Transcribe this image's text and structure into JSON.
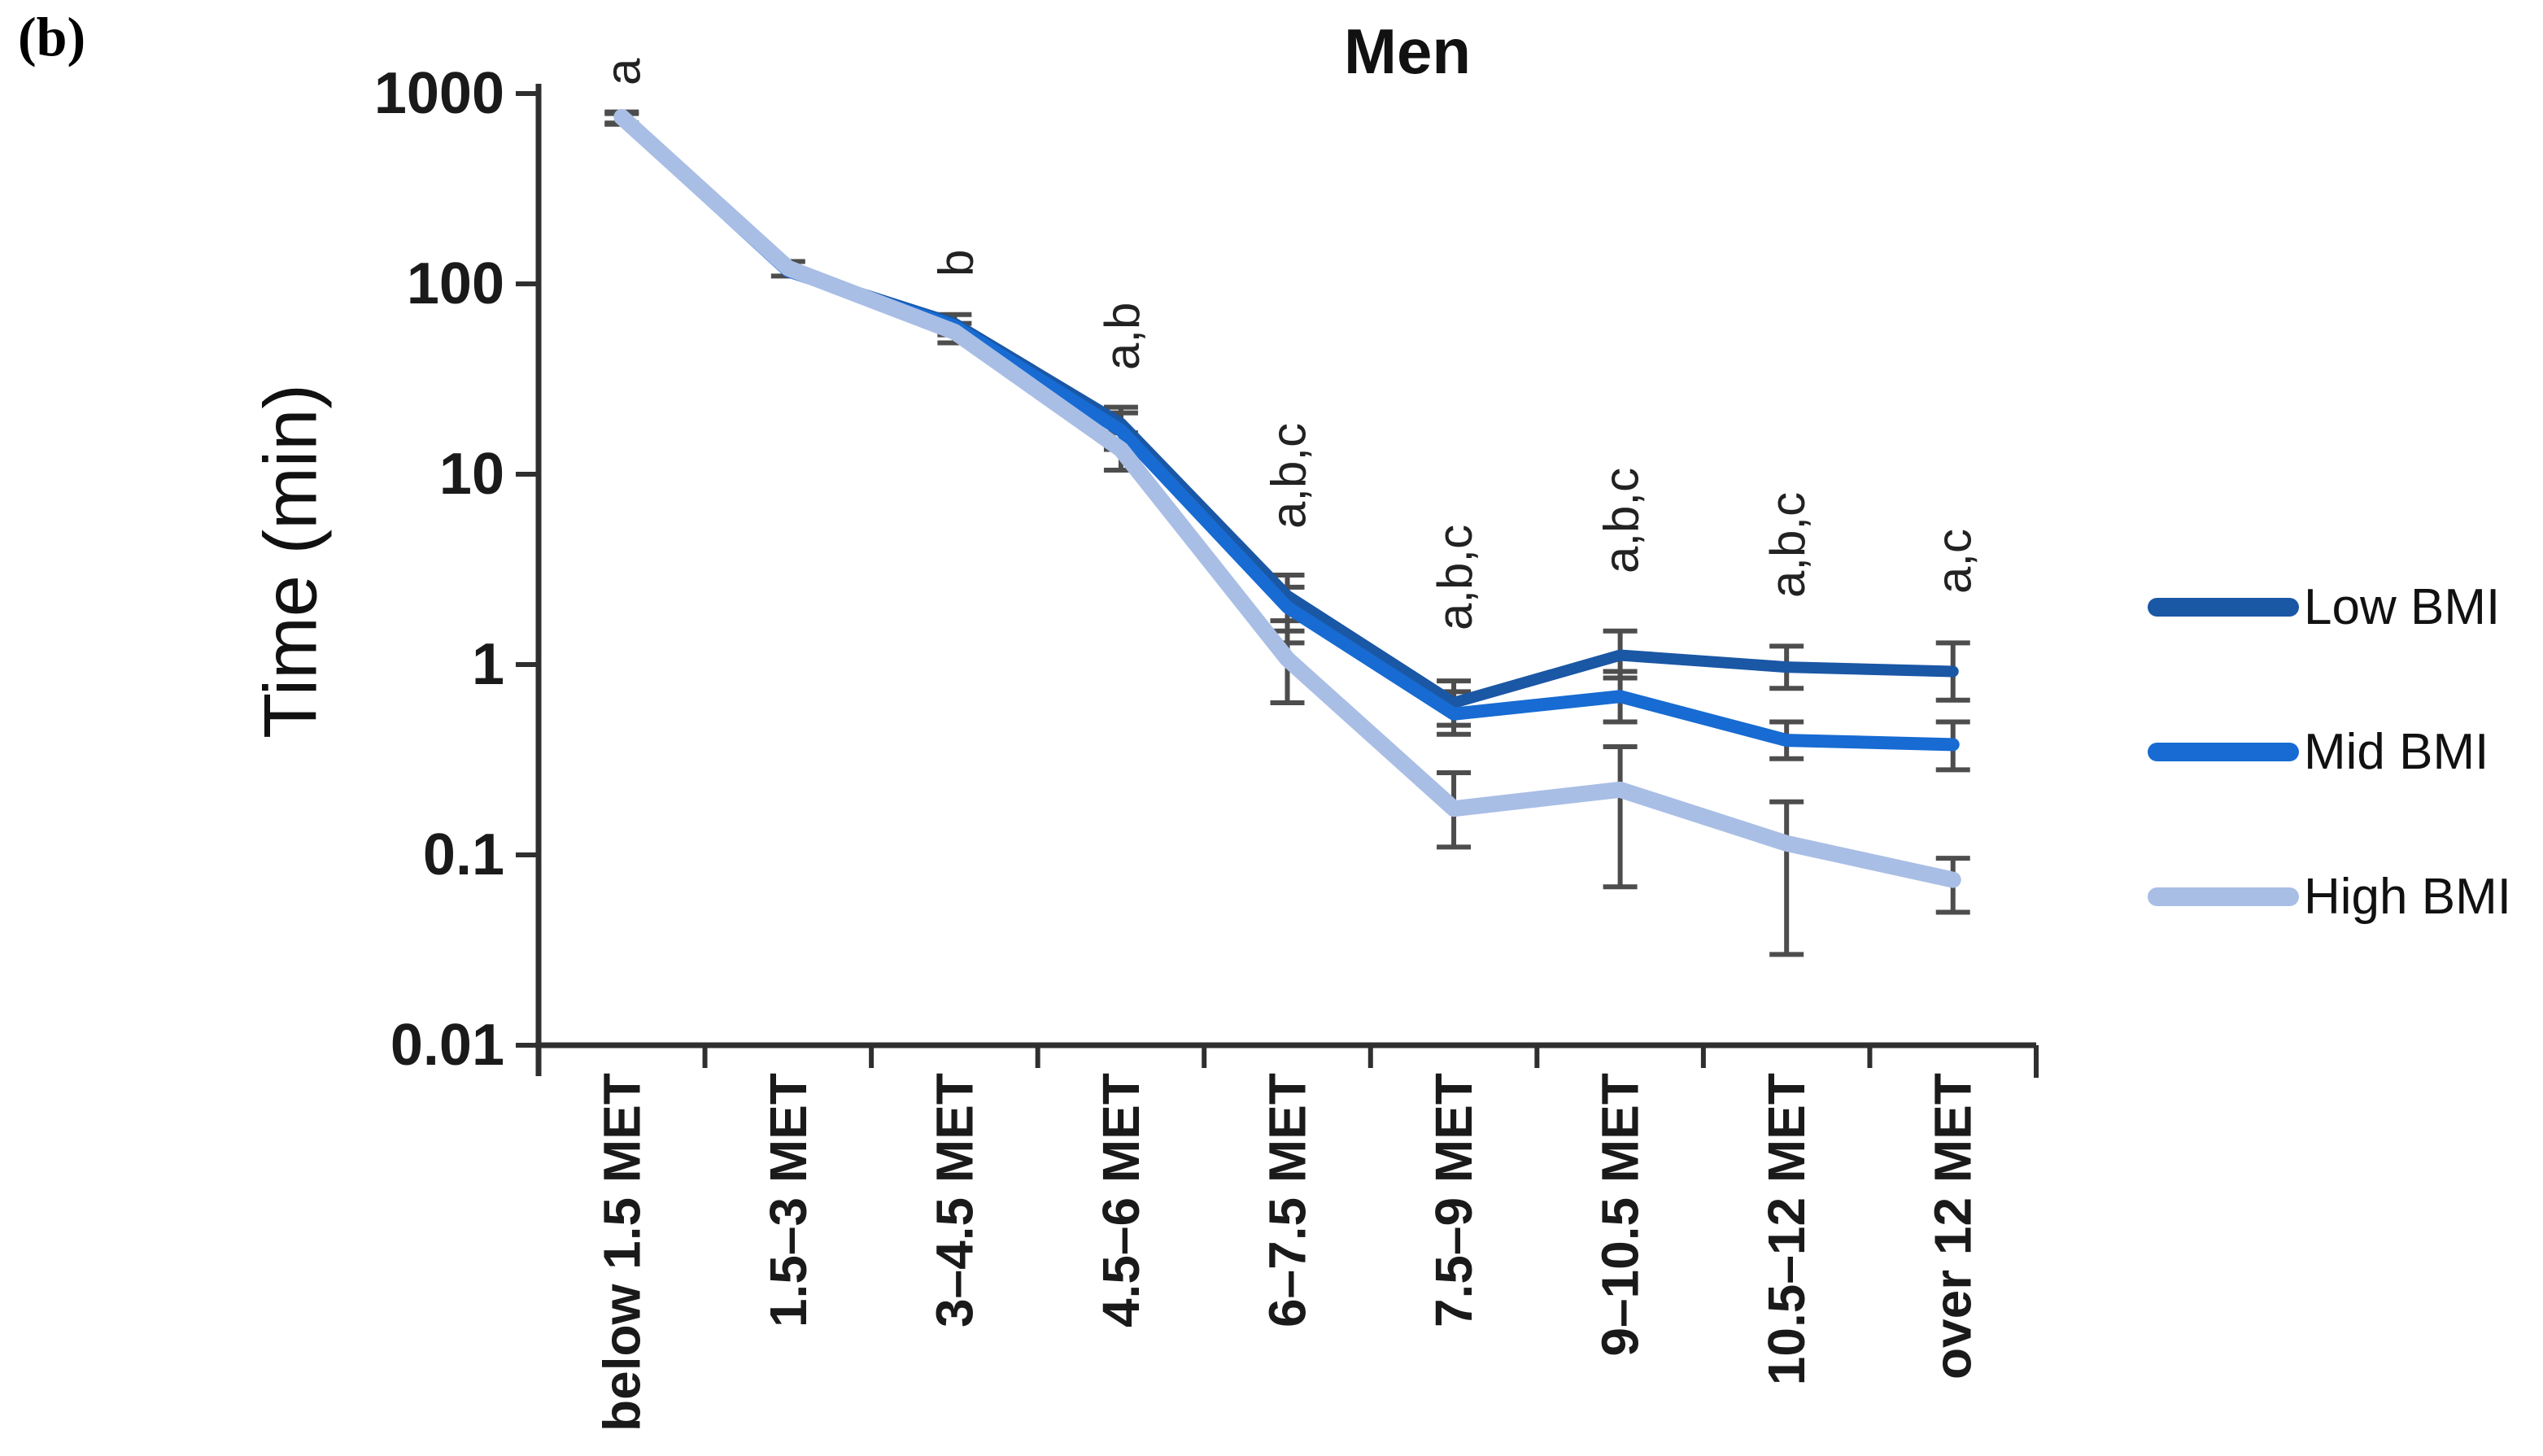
{
  "panel_label": "(b)",
  "chart_data": {
    "type": "line",
    "title": "Men",
    "xlabel": "",
    "ylabel": "Time (min)",
    "yscale": "log",
    "ylim": [
      0.01,
      1000
    ],
    "y_ticks": [
      1000,
      100,
      10,
      1,
      0.1,
      0.01
    ],
    "y_tick_labels": [
      "1000",
      "100",
      "10",
      "1",
      "0.1",
      "0.01"
    ],
    "categories": [
      "below 1.5 MET",
      "1.5–3 MET",
      "3–4.5 MET",
      "4.5–6 MET",
      "6–7.5 MET",
      "7.5–9 MET",
      "9–10.5 MET",
      "10.5–12 MET",
      "over 12 MET"
    ],
    "grid": false,
    "legend_position": "right",
    "series": [
      {
        "name": "Low BMI",
        "color": "#1a57a5",
        "stroke_width": 14,
        "values": [
          730,
          118,
          62,
          18.5,
          2.3,
          0.63,
          1.12,
          0.97,
          0.92
        ],
        "err_low": [
          690,
          110,
          54,
          14.5,
          1.7,
          0.48,
          0.85,
          0.75,
          0.65
        ],
        "err_high": [
          785,
          131,
          69,
          22.5,
          2.95,
          0.82,
          1.5,
          1.25,
          1.3
        ]
      },
      {
        "name": "Mid BMI",
        "color": "#176bd2",
        "stroke_width": 16,
        "values": [
          740,
          117,
          60,
          17,
          2.0,
          0.55,
          0.68,
          0.4,
          0.38
        ],
        "err_low": [
          null,
          null,
          null,
          13.5,
          1.3,
          0.43,
          0.5,
          0.32,
          0.28
        ],
        "err_high": [
          null,
          null,
          null,
          21,
          2.55,
          0.72,
          0.92,
          0.5,
          0.5
        ]
      },
      {
        "name": "High BMI",
        "color": "#a9bee5",
        "stroke_width": 20,
        "values": [
          752,
          121,
          56,
          13.5,
          1.07,
          0.175,
          0.22,
          0.115,
          0.074
        ],
        "err_low": [
          700,
          null,
          49,
          10.5,
          0.63,
          0.11,
          0.068,
          0.03,
          0.05
        ],
        "err_high": [
          800,
          null,
          62,
          16.5,
          1.5,
          0.27,
          0.37,
          0.19,
          0.096
        ]
      }
    ],
    "annotations": [
      {
        "category_index": 0,
        "label": "a",
        "anchor_y": 105
      },
      {
        "category_index": 2,
        "label": "b",
        "anchor_y": 340
      },
      {
        "category_index": 3,
        "label": "a,b",
        "anchor_y": 455
      },
      {
        "category_index": 4,
        "label": "a,b,c",
        "anchor_y": 650
      },
      {
        "category_index": 5,
        "label": "a,b,c",
        "anchor_y": 775
      },
      {
        "category_index": 6,
        "label": "a,b,c",
        "anchor_y": 705
      },
      {
        "category_index": 7,
        "label": "a,b,c",
        "anchor_y": 735
      },
      {
        "category_index": 8,
        "label": "a,c",
        "anchor_y": 730
      }
    ],
    "colors": {
      "axis": "#2f2f2f",
      "error_bar": "#4d4d4d",
      "text": "#1a1a1a"
    }
  }
}
